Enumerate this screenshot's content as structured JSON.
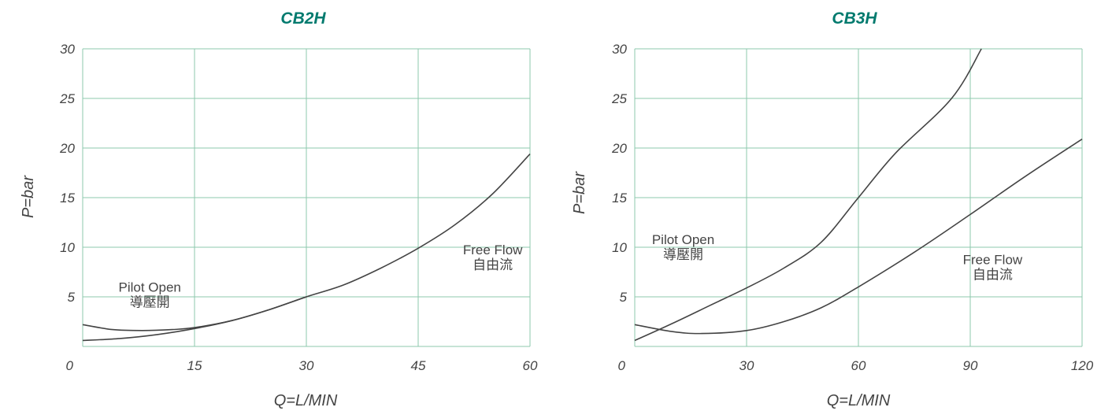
{
  "colors": {
    "title": "#007a6e",
    "grid": "#8ec9ad",
    "curve": "#444444",
    "text": "#444444"
  },
  "chart_data": [
    {
      "type": "line",
      "title": "CB2H",
      "xlabel": "Q=L/MIN",
      "ylabel": "P=bar",
      "xlim": [
        0,
        60
      ],
      "ylim": [
        0,
        30
      ],
      "xticks": [
        "0",
        "15",
        "30",
        "45",
        "60"
      ],
      "yticks": [
        "5",
        "10",
        "15",
        "20",
        "25",
        "30"
      ],
      "grid": true,
      "annotations": [
        {
          "text": "Pilot Open",
          "subtext": "導壓開",
          "x": 9,
          "y": 5.5
        },
        {
          "text": "Free Flow",
          "subtext": "自由流",
          "x": 55,
          "y": 9.3
        }
      ],
      "series": [
        {
          "name": "Free Flow",
          "x": [
            0,
            5,
            10,
            15,
            20,
            25,
            30,
            35,
            40,
            45,
            50,
            55,
            60
          ],
          "y": [
            0.6,
            0.8,
            1.2,
            1.8,
            2.6,
            3.7,
            5.0,
            6.2,
            7.9,
            9.9,
            12.3,
            15.4,
            19.4
          ]
        },
        {
          "name": "Pilot Open",
          "x": [
            0,
            4,
            8,
            12,
            15,
            20,
            25,
            30
          ],
          "y": [
            2.2,
            1.7,
            1.6,
            1.7,
            1.9,
            2.6,
            3.7,
            5.0
          ]
        }
      ]
    },
    {
      "type": "line",
      "title": "CB3H",
      "xlabel": "Q=L/MIN",
      "ylabel": "P=bar",
      "xlim": [
        0,
        120
      ],
      "ylim": [
        0,
        30
      ],
      "xticks": [
        "0",
        "30",
        "60",
        "90",
        "120"
      ],
      "yticks": [
        "5",
        "10",
        "15",
        "20",
        "25",
        "30"
      ],
      "grid": true,
      "annotations": [
        {
          "text": "Pilot Open",
          "subtext": "導壓開",
          "x": 13,
          "y": 10.3
        },
        {
          "text": "Free Flow",
          "subtext": "自由流",
          "x": 96,
          "y": 8.3
        }
      ],
      "series": [
        {
          "name": "Pilot Open",
          "x": [
            0,
            10,
            20,
            30,
            40,
            50,
            60,
            70,
            85,
            93
          ],
          "y": [
            0.6,
            2.3,
            4.1,
            5.9,
            7.9,
            10.5,
            15.0,
            19.5,
            25.0,
            30.0
          ]
        },
        {
          "name": "Free Flow",
          "x": [
            0,
            10,
            18,
            30,
            40,
            50,
            60,
            75,
            90,
            105,
            120
          ],
          "y": [
            2.2,
            1.5,
            1.3,
            1.6,
            2.5,
            3.9,
            6.0,
            9.5,
            13.3,
            17.2,
            20.9
          ]
        }
      ]
    }
  ]
}
